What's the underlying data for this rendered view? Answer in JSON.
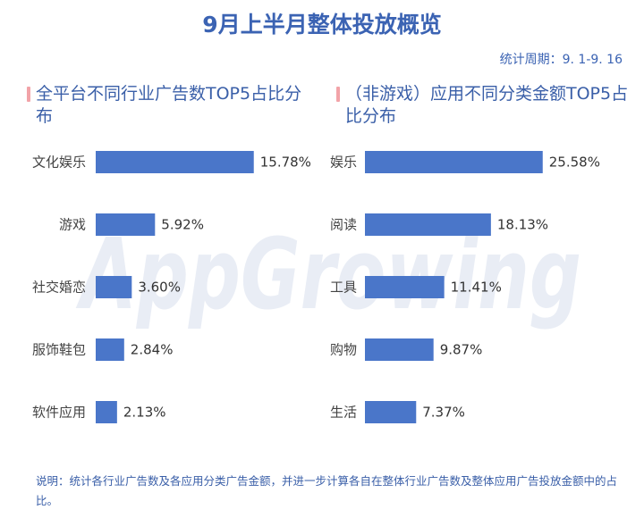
{
  "title": "9月上半月整体投放概览",
  "period": "统计周期：9. 1-9. 16",
  "watermark": "AppGrowing",
  "footnote": "说明：统计各行业广告数及各应用分类广告金额，并进一步计算各自在整体行业广告数及整体应用广告投放金额中的占比。",
  "colors": {
    "bar": "#4a76c9",
    "title": "#3b63b3",
    "accent": "#f2a3a8"
  },
  "chart_data": [
    {
      "type": "bar",
      "orientation": "horizontal",
      "title": "全平台不同行业广告数TOP5占比分布",
      "categories": [
        "文化娱乐",
        "游戏",
        "社交婚恋",
        "服饰鞋包",
        "软件应用"
      ],
      "values": [
        15.78,
        5.92,
        3.6,
        2.84,
        2.13
      ],
      "value_labels": [
        "15.78%",
        "5.92%",
        "3.60%",
        "2.84%",
        "2.13%"
      ]
    },
    {
      "type": "bar",
      "orientation": "horizontal",
      "title": "（非游戏）应用不同分类金额TOP5占比分布",
      "categories": [
        "娱乐",
        "阅读",
        "工具",
        "购物",
        "生活"
      ],
      "values": [
        25.58,
        18.13,
        11.41,
        9.87,
        7.37
      ],
      "value_labels": [
        "25.58%",
        "18.13%",
        "11.41%",
        "9.87%",
        "7.37%"
      ]
    }
  ]
}
